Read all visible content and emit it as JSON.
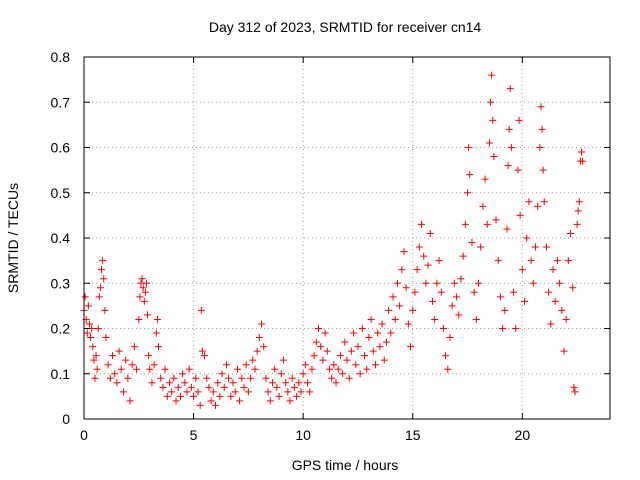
{
  "chart_data": {
    "type": "scatter",
    "title": "Day 312 of 2023, SRMTID for receiver cn14",
    "xlabel": "GPS time / hours",
    "ylabel": "SRMTID / TECUs",
    "xlim": [
      0,
      24
    ],
    "ylim": [
      0,
      0.8
    ],
    "x_ticks": [
      0,
      5,
      10,
      15,
      20
    ],
    "x_tick_labels": [
      "0",
      "5",
      "10",
      "15",
      "20"
    ],
    "y_ticks": [
      0,
      0.1,
      0.2,
      0.3,
      0.4,
      0.5,
      0.6,
      0.7,
      0.8
    ],
    "y_tick_labels": [
      "0",
      "0.1",
      "0.2",
      "0.3",
      "0.4",
      "0.5",
      "0.6",
      "0.7",
      "0.8"
    ],
    "grid": true,
    "marker": "plus",
    "color": "#ff0000",
    "series": [
      {
        "name": "SRMTID",
        "points": [
          [
            0.0,
            0.24
          ],
          [
            0.05,
            0.27
          ],
          [
            0.1,
            0.22
          ],
          [
            0.15,
            0.19
          ],
          [
            0.2,
            0.25
          ],
          [
            0.25,
            0.21
          ],
          [
            0.3,
            0.18
          ],
          [
            0.35,
            0.2
          ],
          [
            0.4,
            0.16
          ],
          [
            0.45,
            0.13
          ],
          [
            0.5,
            0.09
          ],
          [
            0.55,
            0.14
          ],
          [
            0.6,
            0.11
          ],
          [
            0.65,
            0.2
          ],
          [
            0.7,
            0.27
          ],
          [
            0.75,
            0.29
          ],
          [
            0.8,
            0.33
          ],
          [
            0.85,
            0.35
          ],
          [
            0.9,
            0.31
          ],
          [
            0.95,
            0.24
          ],
          [
            1.0,
            0.18
          ],
          [
            1.1,
            0.12
          ],
          [
            1.2,
            0.09
          ],
          [
            1.3,
            0.14
          ],
          [
            1.4,
            0.1
          ],
          [
            1.5,
            0.08
          ],
          [
            1.6,
            0.15
          ],
          [
            1.7,
            0.11
          ],
          [
            1.8,
            0.06
          ],
          [
            1.9,
            0.13
          ],
          [
            2.0,
            0.09
          ],
          [
            2.1,
            0.04
          ],
          [
            2.2,
            0.12
          ],
          [
            2.3,
            0.16
          ],
          [
            2.4,
            0.11
          ],
          [
            2.5,
            0.22
          ],
          [
            2.55,
            0.27
          ],
          [
            2.6,
            0.3
          ],
          [
            2.65,
            0.31
          ],
          [
            2.7,
            0.29
          ],
          [
            2.75,
            0.26
          ],
          [
            2.8,
            0.28
          ],
          [
            2.85,
            0.3
          ],
          [
            2.9,
            0.23
          ],
          [
            2.95,
            0.14
          ],
          [
            3.0,
            0.11
          ],
          [
            3.1,
            0.08
          ],
          [
            3.2,
            0.12
          ],
          [
            3.3,
            0.19
          ],
          [
            3.35,
            0.22
          ],
          [
            3.4,
            0.16
          ],
          [
            3.5,
            0.09
          ],
          [
            3.6,
            0.07
          ],
          [
            3.7,
            0.11
          ],
          [
            3.8,
            0.05
          ],
          [
            3.9,
            0.08
          ],
          [
            4.0,
            0.06
          ],
          [
            4.1,
            0.09
          ],
          [
            4.2,
            0.04
          ],
          [
            4.3,
            0.07
          ],
          [
            4.4,
            0.05
          ],
          [
            4.5,
            0.1
          ],
          [
            4.6,
            0.08
          ],
          [
            4.7,
            0.06
          ],
          [
            4.8,
            0.11
          ],
          [
            4.9,
            0.07
          ],
          [
            5.0,
            0.05
          ],
          [
            5.1,
            0.09
          ],
          [
            5.2,
            0.06
          ],
          [
            5.3,
            0.03
          ],
          [
            5.35,
            0.24
          ],
          [
            5.4,
            0.15
          ],
          [
            5.5,
            0.14
          ],
          [
            5.6,
            0.09
          ],
          [
            5.7,
            0.07
          ],
          [
            5.8,
            0.04
          ],
          [
            5.9,
            0.06
          ],
          [
            6.0,
            0.03
          ],
          [
            6.1,
            0.08
          ],
          [
            6.2,
            0.05
          ],
          [
            6.3,
            0.1
          ],
          [
            6.4,
            0.07
          ],
          [
            6.5,
            0.12
          ],
          [
            6.6,
            0.09
          ],
          [
            6.7,
            0.05
          ],
          [
            6.8,
            0.08
          ],
          [
            6.9,
            0.06
          ],
          [
            7.0,
            0.11
          ],
          [
            7.1,
            0.04
          ],
          [
            7.2,
            0.09
          ],
          [
            7.3,
            0.07
          ],
          [
            7.4,
            0.12
          ],
          [
            7.5,
            0.06
          ],
          [
            7.6,
            0.09
          ],
          [
            7.7,
            0.13
          ],
          [
            7.8,
            0.11
          ],
          [
            7.9,
            0.15
          ],
          [
            8.0,
            0.18
          ],
          [
            8.1,
            0.21
          ],
          [
            8.2,
            0.16
          ],
          [
            8.3,
            0.09
          ],
          [
            8.4,
            0.06
          ],
          [
            8.5,
            0.04
          ],
          [
            8.6,
            0.08
          ],
          [
            8.7,
            0.11
          ],
          [
            8.8,
            0.07
          ],
          [
            8.9,
            0.05
          ],
          [
            9.0,
            0.1
          ],
          [
            9.1,
            0.13
          ],
          [
            9.2,
            0.08
          ],
          [
            9.3,
            0.06
          ],
          [
            9.4,
            0.04
          ],
          [
            9.5,
            0.09
          ],
          [
            9.6,
            0.07
          ],
          [
            9.7,
            0.05
          ],
          [
            9.8,
            0.08
          ],
          [
            9.9,
            0.06
          ],
          [
            10.0,
            0.1
          ],
          [
            10.1,
            0.12
          ],
          [
            10.2,
            0.08
          ],
          [
            10.3,
            0.06
          ],
          [
            10.4,
            0.11
          ],
          [
            10.5,
            0.14
          ],
          [
            10.6,
            0.17
          ],
          [
            10.7,
            0.2
          ],
          [
            10.8,
            0.16
          ],
          [
            10.9,
            0.13
          ],
          [
            11.0,
            0.19
          ],
          [
            11.1,
            0.15
          ],
          [
            11.2,
            0.11
          ],
          [
            11.3,
            0.09
          ],
          [
            11.4,
            0.12
          ],
          [
            11.5,
            0.08
          ],
          [
            11.6,
            0.11
          ],
          [
            11.7,
            0.14
          ],
          [
            11.8,
            0.1
          ],
          [
            11.9,
            0.17
          ],
          [
            12.0,
            0.13
          ],
          [
            12.1,
            0.09
          ],
          [
            12.2,
            0.15
          ],
          [
            12.3,
            0.19
          ],
          [
            12.4,
            0.12
          ],
          [
            12.5,
            0.16
          ],
          [
            12.6,
            0.1
          ],
          [
            12.7,
            0.2
          ],
          [
            12.8,
            0.14
          ],
          [
            12.9,
            0.11
          ],
          [
            13.0,
            0.18
          ],
          [
            13.1,
            0.22
          ],
          [
            13.2,
            0.15
          ],
          [
            13.3,
            0.12
          ],
          [
            13.4,
            0.19
          ],
          [
            13.5,
            0.16
          ],
          [
            13.6,
            0.21
          ],
          [
            13.7,
            0.13
          ],
          [
            13.8,
            0.17
          ],
          [
            13.9,
            0.24
          ],
          [
            14.0,
            0.19
          ],
          [
            14.1,
            0.27
          ],
          [
            14.2,
            0.22
          ],
          [
            14.3,
            0.3
          ],
          [
            14.4,
            0.25
          ],
          [
            14.5,
            0.33
          ],
          [
            14.6,
            0.37
          ],
          [
            14.7,
            0.29
          ],
          [
            14.8,
            0.21
          ],
          [
            14.9,
            0.16
          ],
          [
            15.0,
            0.24
          ],
          [
            15.1,
            0.28
          ],
          [
            15.2,
            0.33
          ],
          [
            15.3,
            0.38
          ],
          [
            15.4,
            0.43
          ],
          [
            15.5,
            0.36
          ],
          [
            15.6,
            0.3
          ],
          [
            15.7,
            0.34
          ],
          [
            15.8,
            0.41
          ],
          [
            15.9,
            0.26
          ],
          [
            16.0,
            0.22
          ],
          [
            16.1,
            0.3
          ],
          [
            16.2,
            0.35
          ],
          [
            16.3,
            0.28
          ],
          [
            16.4,
            0.2
          ],
          [
            16.5,
            0.14
          ],
          [
            16.6,
            0.11
          ],
          [
            16.7,
            0.18
          ],
          [
            16.8,
            0.25
          ],
          [
            16.9,
            0.3
          ],
          [
            17.0,
            0.27
          ],
          [
            17.1,
            0.23
          ],
          [
            17.2,
            0.31
          ],
          [
            17.3,
            0.36
          ],
          [
            17.4,
            0.43
          ],
          [
            17.5,
            0.5
          ],
          [
            17.55,
            0.6
          ],
          [
            17.6,
            0.54
          ],
          [
            17.7,
            0.39
          ],
          [
            17.8,
            0.28
          ],
          [
            17.9,
            0.22
          ],
          [
            18.0,
            0.3
          ],
          [
            18.1,
            0.38
          ],
          [
            18.2,
            0.47
          ],
          [
            18.3,
            0.53
          ],
          [
            18.4,
            0.43
          ],
          [
            18.5,
            0.61
          ],
          [
            18.55,
            0.7
          ],
          [
            18.6,
            0.76
          ],
          [
            18.65,
            0.66
          ],
          [
            18.7,
            0.58
          ],
          [
            18.8,
            0.44
          ],
          [
            18.9,
            0.35
          ],
          [
            19.0,
            0.27
          ],
          [
            19.1,
            0.2
          ],
          [
            19.2,
            0.24
          ],
          [
            19.3,
            0.42
          ],
          [
            19.35,
            0.56
          ],
          [
            19.4,
            0.64
          ],
          [
            19.45,
            0.73
          ],
          [
            19.5,
            0.6
          ],
          [
            19.6,
            0.28
          ],
          [
            19.7,
            0.2
          ],
          [
            19.8,
            0.55
          ],
          [
            19.85,
            0.66
          ],
          [
            19.9,
            0.45
          ],
          [
            20.0,
            0.33
          ],
          [
            20.1,
            0.26
          ],
          [
            20.2,
            0.4
          ],
          [
            20.3,
            0.48
          ],
          [
            20.4,
            0.35
          ],
          [
            20.5,
            0.3
          ],
          [
            20.6,
            0.38
          ],
          [
            20.7,
            0.47
          ],
          [
            20.8,
            0.6
          ],
          [
            20.85,
            0.69
          ],
          [
            20.9,
            0.64
          ],
          [
            20.95,
            0.55
          ],
          [
            21.0,
            0.48
          ],
          [
            21.1,
            0.38
          ],
          [
            21.2,
            0.28
          ],
          [
            21.3,
            0.21
          ],
          [
            21.4,
            0.33
          ],
          [
            21.5,
            0.26
          ],
          [
            21.6,
            0.35
          ],
          [
            21.7,
            0.3
          ],
          [
            21.8,
            0.24
          ],
          [
            21.9,
            0.15
          ],
          [
            22.0,
            0.22
          ],
          [
            22.1,
            0.35
          ],
          [
            22.2,
            0.41
          ],
          [
            22.3,
            0.29
          ],
          [
            22.35,
            0.07
          ],
          [
            22.4,
            0.06
          ],
          [
            22.5,
            0.43
          ],
          [
            22.55,
            0.46
          ],
          [
            22.6,
            0.48
          ],
          [
            22.65,
            0.57
          ],
          [
            22.7,
            0.59
          ],
          [
            22.75,
            0.57
          ]
        ]
      }
    ]
  }
}
